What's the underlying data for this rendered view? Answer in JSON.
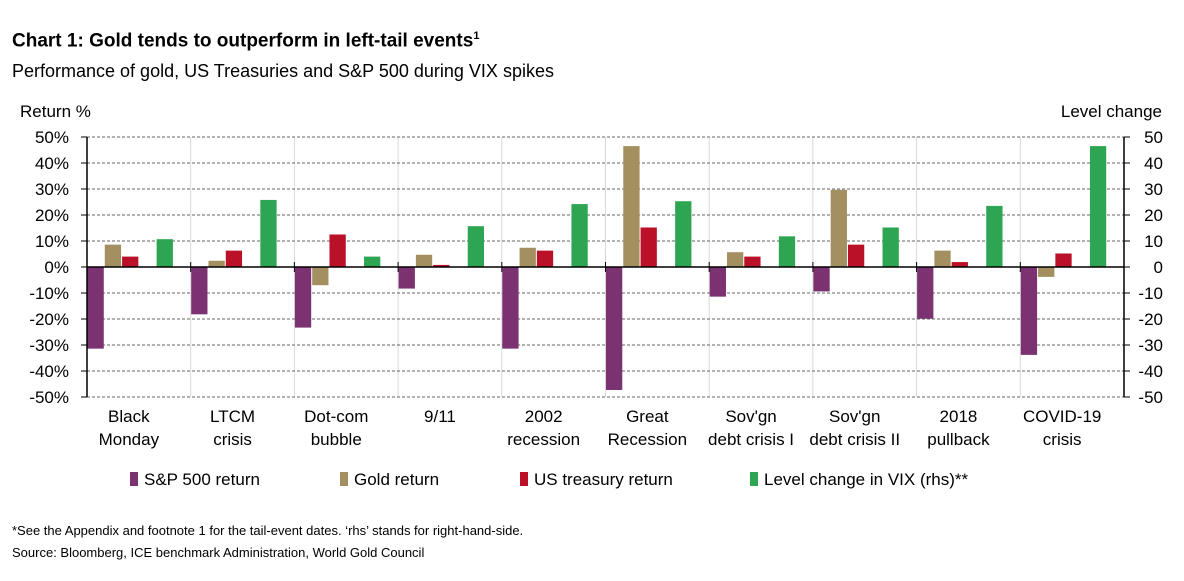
{
  "chart_data": {
    "type": "bar",
    "title": "Chart 1: Gold tends to outperform in left-tail events",
    "title_sup": "1",
    "subtitle": "Performance of gold, US Treasuries and S&P 500 during VIX spikes",
    "ylabel": "Return %",
    "y2label": "Level change",
    "ylim": [
      -50,
      50
    ],
    "y2lim": [
      -50,
      50
    ],
    "yticks": [
      "50%",
      "40%",
      "30%",
      "20%",
      "10%",
      "0%",
      "-10%",
      "-20%",
      "-30%",
      "-40%",
      "-50%"
    ],
    "y2ticks": [
      "50",
      "40",
      "30",
      "20",
      "10",
      "0",
      "-10",
      "-20",
      "-30",
      "-40",
      "-50"
    ],
    "grid": true,
    "legend_position": "bottom",
    "categories": [
      [
        "Black",
        "Monday"
      ],
      [
        "LTCM",
        "crisis"
      ],
      [
        "Dot-com",
        "bubble"
      ],
      [
        "9/11",
        ""
      ],
      [
        "2002",
        "recession"
      ],
      [
        "Great",
        "Recession"
      ],
      [
        "Sov'gn",
        "debt crisis I"
      ],
      [
        "Sov'gn",
        "debt crisis II"
      ],
      [
        "2018",
        "pullback"
      ],
      [
        "COVID-19",
        "crisis"
      ]
    ],
    "series": [
      {
        "name": "S&P 500 return",
        "color": "#7B3270",
        "slot": 0,
        "values": [
          -31.4,
          -18.2,
          -23.3,
          -8.3,
          -31.4,
          -47.3,
          -11.4,
          -9.4,
          -19.9,
          -33.8
        ]
      },
      {
        "name": "Gold return",
        "color": "#A48F60",
        "slot": 1,
        "values": [
          8.6,
          2.4,
          -7.0,
          4.7,
          7.4,
          46.5,
          5.7,
          29.7,
          6.3,
          -3.8
        ]
      },
      {
        "name": "US treasury return",
        "color": "#BA1128",
        "slot": 2,
        "values": [
          4.0,
          6.3,
          12.5,
          0.8,
          6.3,
          15.2,
          4.0,
          8.6,
          1.9,
          5.2
        ]
      },
      {
        "name": "Level change in VIX (rhs)**",
        "color": "#2EA552",
        "slot": 4,
        "values": [
          10.7,
          25.8,
          4.0,
          15.7,
          24.2,
          25.3,
          11.8,
          15.2,
          23.5,
          46.5
        ]
      }
    ]
  },
  "footnote": "*See the Appendix and footnote 1 for the tail-event dates. ‘rhs’ stands for right-hand-side.",
  "source": "Source: Bloomberg, ICE benchmark Administration, World Gold Council"
}
